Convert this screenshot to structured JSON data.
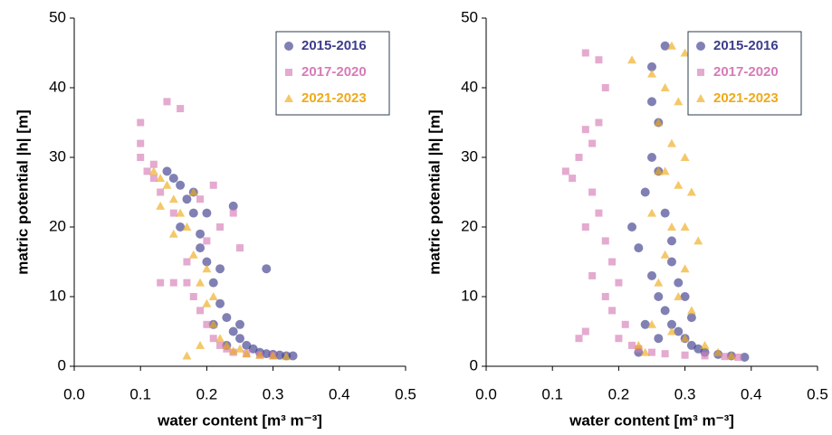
{
  "chart_data": [
    {
      "type": "scatter",
      "xlabel": "water content [m³ m⁻³]",
      "ylabel": "matric potential |h| [m]",
      "xlim": [
        0,
        0.5
      ],
      "ylim": [
        0,
        50
      ],
      "xticks": [
        {
          "value": 0,
          "label": "0.0"
        },
        0.1,
        0.2,
        0.3,
        0.4,
        0.5
      ],
      "yticks": [
        0,
        10,
        20,
        30,
        40,
        50
      ],
      "legend": "upper right",
      "series": [
        {
          "name": "2015-2016",
          "color": "#3c3c8c",
          "marker": "circle",
          "x": [
            0.14,
            0.15,
            0.16,
            0.17,
            0.18,
            0.19,
            0.2,
            0.21,
            0.22,
            0.23,
            0.24,
            0.25,
            0.26,
            0.27,
            0.28,
            0.29,
            0.3,
            0.31,
            0.32,
            0.33,
            0.16,
            0.18,
            0.2,
            0.22,
            0.24,
            0.29,
            0.21,
            0.19,
            0.23,
            0.25
          ],
          "y": [
            28,
            27,
            26,
            24,
            22,
            19,
            15,
            12,
            9,
            7,
            5,
            4,
            3,
            2.5,
            2,
            1.8,
            1.7,
            1.6,
            1.5,
            1.5,
            20,
            25,
            22,
            14,
            23,
            14,
            6,
            17,
            3,
            6
          ]
        },
        {
          "name": "2017-2020",
          "color": "#d67cb5",
          "marker": "square",
          "x": [
            0.1,
            0.1,
            0.11,
            0.12,
            0.13,
            0.14,
            0.15,
            0.16,
            0.17,
            0.15,
            0.18,
            0.19,
            0.2,
            0.21,
            0.22,
            0.23,
            0.24,
            0.26,
            0.28,
            0.3,
            0.19,
            0.21,
            0.24,
            0.25,
            0.22,
            0.1,
            0.12,
            0.13,
            0.17,
            0.2
          ],
          "y": [
            35,
            30,
            28,
            27,
            25,
            38,
            22,
            37,
            12,
            12,
            10,
            8,
            6,
            4,
            3,
            2.5,
            2,
            1.8,
            1.6,
            1.5,
            24,
            26,
            22,
            17,
            20,
            32,
            29,
            12,
            15,
            18
          ]
        },
        {
          "name": "2021-2023",
          "color": "#eeaa1a",
          "marker": "triangle",
          "x": [
            0.12,
            0.13,
            0.14,
            0.15,
            0.16,
            0.17,
            0.18,
            0.19,
            0.2,
            0.21,
            0.22,
            0.23,
            0.24,
            0.26,
            0.28,
            0.3,
            0.32,
            0.15,
            0.19,
            0.17,
            0.13,
            0.18,
            0.2,
            0.21,
            0.25
          ],
          "y": [
            28,
            27,
            26,
            24,
            22,
            20,
            16,
            12,
            9,
            6,
            4,
            3,
            2.2,
            1.8,
            1.6,
            1.5,
            1.4,
            19,
            3,
            1.5,
            23,
            25,
            14,
            10,
            2.5
          ]
        }
      ]
    },
    {
      "type": "scatter",
      "xlabel": "water content [m³ m⁻³]",
      "ylabel": "matric potential |h| [m]",
      "xlim": [
        0,
        0.5
      ],
      "ylim": [
        0,
        50
      ],
      "xticks": [
        {
          "value": 0,
          "label": "0.0"
        },
        0.1,
        0.2,
        0.3,
        0.4,
        0.5
      ],
      "yticks": [
        0,
        10,
        20,
        30,
        40,
        50
      ],
      "legend": "upper right",
      "series": [
        {
          "name": "2015-2016",
          "color": "#3c3c8c",
          "marker": "circle",
          "x": [
            0.27,
            0.25,
            0.25,
            0.26,
            0.25,
            0.26,
            0.24,
            0.27,
            0.22,
            0.23,
            0.28,
            0.25,
            0.26,
            0.29,
            0.27,
            0.28,
            0.29,
            0.3,
            0.31,
            0.32,
            0.33,
            0.35,
            0.37,
            0.39,
            0.24,
            0.26,
            0.23,
            0.3,
            0.31,
            0.28
          ],
          "y": [
            46,
            43,
            38,
            35,
            30,
            28,
            25,
            22,
            20,
            17,
            15,
            13,
            10,
            12,
            8,
            6,
            5,
            4,
            3,
            2.5,
            2,
            1.7,
            1.5,
            1.3,
            6,
            4,
            2,
            10,
            7,
            18
          ]
        },
        {
          "name": "2017-2020",
          "color": "#d67cb5",
          "marker": "square",
          "x": [
            0.12,
            0.13,
            0.14,
            0.15,
            0.16,
            0.15,
            0.17,
            0.18,
            0.16,
            0.17,
            0.18,
            0.16,
            0.19,
            0.2,
            0.19,
            0.21,
            0.2,
            0.22,
            0.23,
            0.25,
            0.27,
            0.3,
            0.33,
            0.36,
            0.38,
            0.15,
            0.14,
            0.17,
            0.15,
            0.18
          ],
          "y": [
            28,
            27,
            30,
            34,
            32,
            45,
            44,
            40,
            25,
            22,
            18,
            13,
            15,
            12,
            8,
            6,
            4,
            3,
            2.5,
            2,
            1.8,
            1.6,
            1.5,
            1.4,
            1.3,
            5,
            4,
            35,
            20,
            10
          ]
        },
        {
          "name": "2021-2023",
          "color": "#eeaa1a",
          "marker": "triangle",
          "x": [
            0.22,
            0.28,
            0.3,
            0.25,
            0.27,
            0.29,
            0.26,
            0.28,
            0.3,
            0.27,
            0.29,
            0.31,
            0.25,
            0.28,
            0.32,
            0.27,
            0.3,
            0.26,
            0.29,
            0.31,
            0.25,
            0.28,
            0.3,
            0.33,
            0.35,
            0.37,
            0.23,
            0.24,
            0.3,
            0.26
          ],
          "y": [
            44,
            46,
            45,
            42,
            40,
            38,
            35,
            32,
            30,
            28,
            26,
            25,
            22,
            20,
            18,
            16,
            14,
            12,
            10,
            8,
            6,
            5,
            4,
            3,
            2,
            1.5,
            3,
            2,
            20,
            28
          ]
        }
      ]
    }
  ]
}
